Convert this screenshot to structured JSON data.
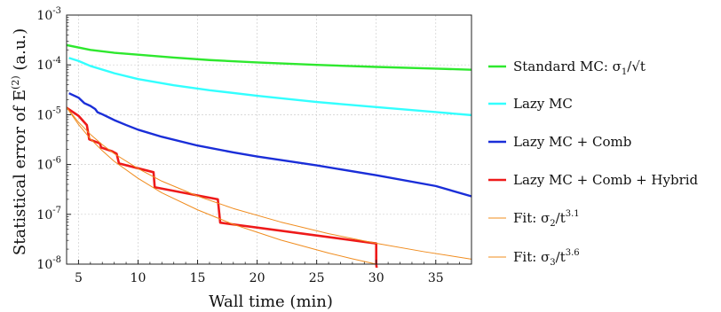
{
  "chart_data": {
    "type": "line",
    "xlabel": "Wall time (min)",
    "ylabel": "Statistical error of E(2) (a.u.)",
    "xlim": [
      4,
      38
    ],
    "ylim": [
      1e-08,
      0.001
    ],
    "yscale": "log",
    "x_ticks": [
      5,
      10,
      15,
      20,
      25,
      30,
      35
    ],
    "y_ticks": [
      "10-8",
      "10-7",
      "10-6",
      "10-5",
      "10-4",
      "10-3"
    ],
    "grid": true,
    "legend_position": "right",
    "series": [
      {
        "name": "Standard MC: σ1/√t",
        "color": "#2ee82e",
        "x": [
          4,
          6,
          8,
          10,
          13,
          16,
          20,
          25,
          30,
          35,
          38
        ],
        "y": [
          0.00025,
          0.0002,
          0.000175,
          0.00016,
          0.00014,
          0.000125,
          0.000112,
          0.0001,
          9.1e-05,
          8.4e-05,
          8e-05
        ]
      },
      {
        "name": "Lazy MC",
        "color": "#33ffff",
        "x": [
          4.2,
          5,
          6,
          8,
          10,
          13,
          16,
          20,
          25,
          30,
          35,
          38
        ],
        "y": [
          0.000138,
          0.00012,
          9.5e-05,
          6.8e-05,
          5.2e-05,
          3.9e-05,
          3.1e-05,
          2.4e-05,
          1.8e-05,
          1.42e-05,
          1.13e-05,
          9.8e-06
        ]
      },
      {
        "name": "Lazy MC + Comb",
        "color": "#1a2ed8",
        "x": [
          4.2,
          5,
          5.5,
          6,
          6.4,
          6.6,
          7,
          8,
          9,
          10,
          12,
          15,
          18,
          20,
          25,
          30,
          35,
          38
        ],
        "y": [
          2.7e-05,
          2.2e-05,
          1.7e-05,
          1.5e-05,
          1.3e-05,
          1.12e-05,
          1.02e-05,
          7.8e-06,
          6.2e-06,
          5e-06,
          3.6e-06,
          2.4e-06,
          1.75e-06,
          1.45e-06,
          9.6e-07,
          6.1e-07,
          3.7e-07,
          2.3e-07
        ]
      },
      {
        "name": "Lazy MC + Comb + Hybrid",
        "color": "#ee1a1a",
        "x": [
          4,
          5,
          5.7,
          5.9,
          6.8,
          6.9,
          7.8,
          8.2,
          8.4,
          11.3,
          11.4,
          16.7,
          16.9,
          30,
          30,
          30.05
        ],
        "y": [
          1.38e-05,
          9.5e-06,
          6.2e-06,
          3.2e-06,
          2.65e-06,
          2.2e-06,
          1.85e-06,
          1.65e-06,
          1.05e-06,
          7e-07,
          3.5e-07,
          2e-07,
          6.8e-08,
          2.6e-08,
          1e-08,
          8e-09
        ]
      },
      {
        "name": "Fit: σ2/t3.1",
        "color": "#f08c1e",
        "x": [
          4,
          5,
          6,
          7,
          8,
          10,
          12,
          15,
          18,
          22,
          26,
          30,
          34,
          38
        ],
        "y": [
          1.4e-05,
          7.09e-06,
          4.03e-06,
          2.5e-06,
          1.65e-06,
          8.28e-07,
          4.63e-07,
          2.32e-07,
          1.31e-07,
          6.98e-08,
          4.09e-08,
          2.62e-08,
          1.78e-08,
          1.26e-08
        ]
      },
      {
        "name": "Fit: σ3/t3.6",
        "color": "#f08c1e",
        "x": [
          4,
          5,
          6,
          7,
          8,
          10,
          12,
          15,
          18,
          22,
          26,
          28,
          30
        ],
        "y": [
          1.4e-05,
          6.36e-06,
          3.28e-06,
          1.89e-06,
          1.16e-06,
          5.28e-07,
          2.7e-07,
          1.23e-07,
          6.29e-08,
          3.04e-08,
          1.67e-08,
          1.28e-08,
          1e-08
        ]
      }
    ]
  },
  "legend": {
    "items": [
      {
        "label": "Standard MC: σ",
        "sub": "1",
        "tail": "/√t"
      },
      {
        "label": "Lazy MC",
        "sub": "",
        "tail": ""
      },
      {
        "label": "Lazy MC + Comb",
        "sub": "",
        "tail": ""
      },
      {
        "label": "Lazy MC + Comb + Hybrid",
        "sub": "",
        "tail": ""
      },
      {
        "label": "Fit: σ",
        "sub": "2",
        "tail": "/t",
        "sup": "3.1"
      },
      {
        "label": "Fit: σ",
        "sub": "3",
        "tail": "/t",
        "sup": "3.6"
      }
    ]
  },
  "axes": {
    "xlabel": "Wall time (min)",
    "ylabel_main": "Statistical error of E",
    "ylabel_sup": "(2)",
    "ylabel_tail": " (a.u.)"
  }
}
